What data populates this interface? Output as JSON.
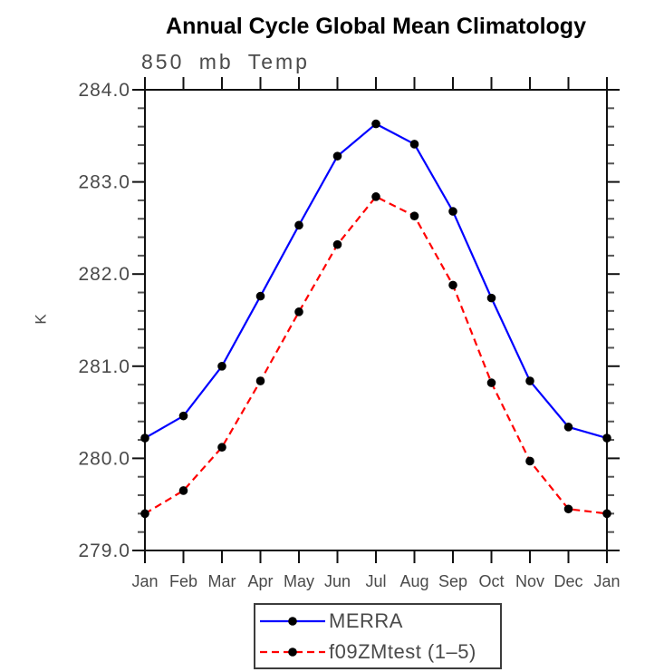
{
  "title": "Annual Cycle Global Mean Climatology",
  "subtitle": "850 mb Temp",
  "ylabel": "K",
  "legend": {
    "position": "bottom-center",
    "entries": [
      {
        "label": "MERRA",
        "color": "#0000ff",
        "line_style": "solid",
        "marker": "filled-circle"
      },
      {
        "label": "f09ZMtest (1–5)",
        "color": "#ff0000",
        "line_style": "dashed",
        "marker": "filled-circle"
      }
    ]
  },
  "colors": {
    "title": "#000000",
    "axis": "#111111",
    "minor_tick": "#555555",
    "tick_text": "#4a4a4a",
    "merra_line": "#0000ff",
    "f09_line": "#ff0000",
    "marker": "#000000",
    "legend_border": "#3c3c3c",
    "background": "#ffffff"
  },
  "chart_data": {
    "type": "line",
    "title": "Annual Cycle Global Mean Climatology",
    "subtitle": "850 mb Temp",
    "xlabel": "",
    "ylabel": "K",
    "ylim": [
      279.0,
      284.0
    ],
    "y_major_step": 1.0,
    "y_minor_step": 0.2,
    "y_tick_labels": [
      "284.0",
      "283.0",
      "282.0",
      "281.0",
      "280.0",
      "279.0"
    ],
    "categories": [
      "Jan",
      "Feb",
      "Mar",
      "Apr",
      "May",
      "Jun",
      "Jul",
      "Aug",
      "Sep",
      "Oct",
      "Nov",
      "Dec",
      "Jan"
    ],
    "grid": false,
    "frame": "box",
    "tick_direction": "outward",
    "legend_position": "bottom-center",
    "series": [
      {
        "name": "MERRA",
        "color": "#0000ff",
        "line_style": "solid",
        "marker": "filled-circle",
        "marker_color": "#000000",
        "values": [
          280.22,
          280.46,
          281.0,
          281.76,
          282.53,
          283.28,
          283.63,
          283.41,
          282.68,
          281.74,
          280.84,
          280.34,
          280.22
        ]
      },
      {
        "name": "f09ZMtest (1–5)",
        "color": "#ff0000",
        "line_style": "dashed",
        "marker": "filled-circle",
        "marker_color": "#000000",
        "values": [
          279.4,
          279.65,
          280.12,
          280.84,
          281.59,
          282.32,
          282.84,
          282.63,
          281.88,
          280.82,
          279.97,
          279.45,
          279.4
        ]
      }
    ]
  }
}
